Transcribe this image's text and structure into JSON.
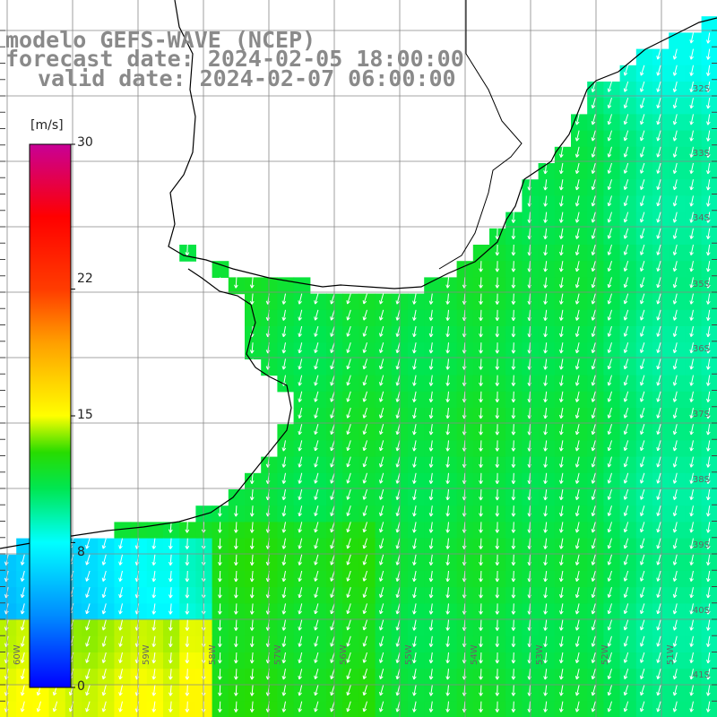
{
  "title": {
    "line1": "modelo GEFS-WAVE (NCEP)",
    "line2": "forecast date: 2024-02-05 18:00:00",
    "line3": "valid date: 2024-02-07 06:00:00"
  },
  "colorbar": {
    "unit": "[m/s]",
    "min": 0,
    "max": 30,
    "ticks": [
      "30",
      "22",
      "15",
      "8",
      "0"
    ],
    "tick_values": [
      30,
      22,
      15,
      8,
      0
    ]
  },
  "lat_labels": [
    "32S",
    "33S",
    "34S",
    "35S",
    "36S",
    "37S",
    "38S",
    "39S",
    "40S",
    "41S"
  ],
  "lon_labels": [
    "60W",
    "59W",
    "58W",
    "57W",
    "56W",
    "55W",
    "54W",
    "53W",
    "52W",
    "51W"
  ],
  "colors": {
    "land": "#ffffff",
    "grid": "#888888",
    "coast": "#000000",
    "arrows": "#ffffff",
    "title_text": "#8a8a8a"
  },
  "field": {
    "variable": "wind speed",
    "unit": "m/s",
    "arrow_direction": "from NE toward SW"
  }
}
